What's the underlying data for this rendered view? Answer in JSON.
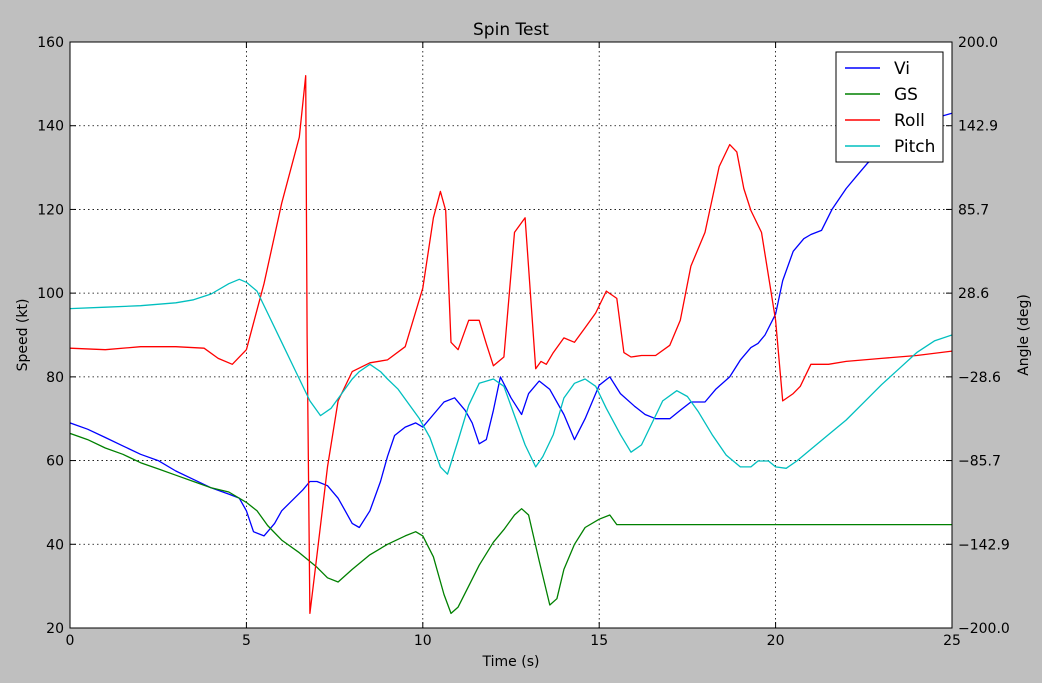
{
  "chart_data": {
    "type": "line",
    "title": "Spin Test",
    "xlabel": "Time (s)",
    "ylabel": "Speed (kt)",
    "y2label": "Angle (deg)",
    "xlim": [
      0,
      25
    ],
    "ylim": [
      20,
      160
    ],
    "y2lim": [
      -200,
      200
    ],
    "x_ticks": [
      "0",
      "5",
      "10",
      "15",
      "20",
      "25"
    ],
    "y_ticks": [
      "20",
      "40",
      "60",
      "80",
      "100",
      "120",
      "140",
      "160"
    ],
    "y2_ticks": [
      "−200.0",
      "−142.9",
      "−85.7",
      "−28.6",
      "28.6",
      "85.7",
      "142.9",
      "200.0"
    ],
    "grid": true,
    "legend_position": "top-right",
    "series": [
      {
        "name": "Vi",
        "axis": "left",
        "color": "#0000ff",
        "x": [
          0,
          0.5,
          1,
          1.5,
          2,
          2.5,
          3,
          3.5,
          4,
          4.5,
          4.8,
          5,
          5.2,
          5.5,
          5.8,
          6,
          6.3,
          6.6,
          6.8,
          7,
          7.3,
          7.6,
          7.8,
          8,
          8.2,
          8.5,
          8.8,
          9,
          9.2,
          9.5,
          9.8,
          10,
          10.3,
          10.6,
          10.9,
          11.2,
          11.4,
          11.6,
          11.8,
          12,
          12.2,
          12.5,
          12.8,
          13,
          13.3,
          13.6,
          14,
          14.3,
          14.6,
          15,
          15.3,
          15.6,
          16,
          16.3,
          16.6,
          17,
          17.3,
          17.6,
          18,
          18.3,
          18.7,
          19,
          19.3,
          19.5,
          19.7,
          20,
          20.2,
          20.5,
          20.8,
          21,
          21.3,
          21.6,
          22,
          22.3,
          22.6,
          23,
          23.3,
          23.6,
          24,
          24.3,
          24.6,
          25
        ],
        "values": [
          69,
          67.5,
          65.5,
          63.5,
          61.5,
          60,
          57.5,
          55.5,
          53.5,
          52,
          51,
          48,
          43,
          42,
          45,
          48,
          50.5,
          53,
          55,
          55,
          54,
          51,
          48,
          45,
          44,
          48,
          55,
          61,
          66,
          68,
          69,
          68,
          71,
          74,
          75,
          72,
          69,
          64,
          65,
          72,
          80,
          75,
          71,
          76,
          79,
          77,
          71,
          65,
          70,
          78,
          80,
          76,
          73,
          71,
          70,
          70,
          72,
          74,
          74,
          77,
          80,
          84,
          87,
          88,
          90,
          95,
          103,
          110,
          113,
          114,
          115,
          120,
          125,
          128,
          131,
          134,
          137,
          139,
          140,
          141,
          142,
          143
        ]
      },
      {
        "name": "GS",
        "axis": "left",
        "color": "#008000",
        "x": [
          0,
          0.5,
          1,
          1.5,
          2,
          2.5,
          3,
          3.5,
          4,
          4.5,
          5,
          5.3,
          5.6,
          6,
          6.5,
          7,
          7.3,
          7.6,
          8,
          8.5,
          9,
          9.5,
          9.8,
          10,
          10.3,
          10.6,
          10.8,
          11,
          11.3,
          11.6,
          12,
          12.3,
          12.6,
          12.8,
          13,
          13.3,
          13.6,
          13.8,
          14,
          14.3,
          14.6,
          15,
          15.3,
          15.5,
          16,
          17,
          18,
          19,
          20,
          21,
          22,
          23,
          24,
          25
        ],
        "values": [
          66.5,
          65,
          63,
          61.5,
          59.5,
          58,
          56.5,
          55,
          53.5,
          52.5,
          50,
          48,
          44.5,
          41,
          38,
          34.5,
          32,
          31,
          34,
          37.5,
          40,
          42,
          43,
          42,
          37,
          28,
          23.5,
          25,
          30,
          35,
          40.5,
          43.5,
          47,
          48.5,
          47,
          36,
          25.5,
          27,
          34,
          40,
          44,
          46,
          47,
          44.7,
          44.7,
          44.7,
          44.7,
          44.7,
          44.7,
          44.7,
          44.7,
          44.7,
          44.7,
          44.7
        ]
      },
      {
        "name": "Roll",
        "axis": "right",
        "color": "#ff0000",
        "x": [
          0,
          1,
          2,
          3,
          3.8,
          4.2,
          4.6,
          5,
          5.5,
          6,
          6.5,
          6.68,
          6.72,
          6.8,
          7,
          7.3,
          7.6,
          8,
          8.5,
          9,
          9.5,
          10,
          10.3,
          10.5,
          10.65,
          10.8,
          11,
          11.3,
          11.6,
          11.8,
          12,
          12.3,
          12.6,
          12.9,
          13.2,
          13.35,
          13.5,
          13.7,
          14,
          14.3,
          14.6,
          14.9,
          15.2,
          15.5,
          15.7,
          15.9,
          16.2,
          16.6,
          17,
          17.3,
          17.6,
          18,
          18.4,
          18.7,
          18.9,
          19.1,
          19.3,
          19.6,
          20,
          20.2,
          20.5,
          20.7,
          21,
          21.5,
          22,
          23,
          24,
          25
        ],
        "values": [
          -9,
          -10,
          -8,
          -8,
          -9,
          -16,
          -20,
          -10,
          35,
          90,
          135,
          177,
          0,
          -190,
          -150,
          -90,
          -45,
          -25,
          -19,
          -17,
          -8,
          32,
          80,
          98,
          85,
          -5,
          -10,
          10,
          10,
          -6,
          -21,
          -15,
          70,
          80,
          -23,
          -18,
          -20,
          -12,
          -2,
          -5,
          5,
          15,
          30,
          25,
          -12,
          -15,
          -14,
          -14,
          -7,
          10,
          47,
          70,
          115,
          130,
          125,
          100,
          85,
          70,
          10,
          -45,
          -40,
          -35,
          -20,
          -20,
          -18,
          -16,
          -14,
          -11
        ]
      },
      {
        "name": "Pitch",
        "axis": "right",
        "color": "#00bfbf",
        "x": [
          0,
          1,
          2,
          3,
          3.5,
          4,
          4.5,
          4.8,
          5,
          5.3,
          5.6,
          6,
          6.4,
          6.8,
          7.1,
          7.4,
          7.7,
          8,
          8.2,
          8.5,
          8.8,
          9,
          9.3,
          9.6,
          9.9,
          10.2,
          10.5,
          10.7,
          11,
          11.3,
          11.6,
          12,
          12.3,
          12.6,
          12.9,
          13.2,
          13.4,
          13.7,
          14,
          14.3,
          14.6,
          14.9,
          15.2,
          15.6,
          15.9,
          16.2,
          16.5,
          16.8,
          17.2,
          17.5,
          17.8,
          18.2,
          18.6,
          19,
          19.3,
          19.5,
          19.8,
          20,
          20.3,
          20.6,
          21,
          21.5,
          22,
          22.5,
          23,
          23.5,
          24,
          24.5,
          25
        ],
        "values": [
          18,
          19,
          20,
          22,
          24,
          28,
          35,
          38,
          36,
          30,
          15,
          -5,
          -25,
          -45,
          -55,
          -50,
          -40,
          -30,
          -25,
          -20,
          -25,
          -30,
          -37,
          -47,
          -57,
          -70,
          -90,
          -95,
          -72,
          -48,
          -33,
          -30,
          -35,
          -55,
          -75,
          -90,
          -83,
          -68,
          -43,
          -33,
          -30,
          -35,
          -50,
          -68,
          -80,
          -75,
          -60,
          -45,
          -38,
          -42,
          -52,
          -68,
          -82,
          -90,
          -90,
          -86,
          -86,
          -90,
          -91,
          -86,
          -78,
          -68,
          -58,
          -46,
          -34,
          -23,
          -12,
          -4,
          0
        ]
      }
    ]
  }
}
